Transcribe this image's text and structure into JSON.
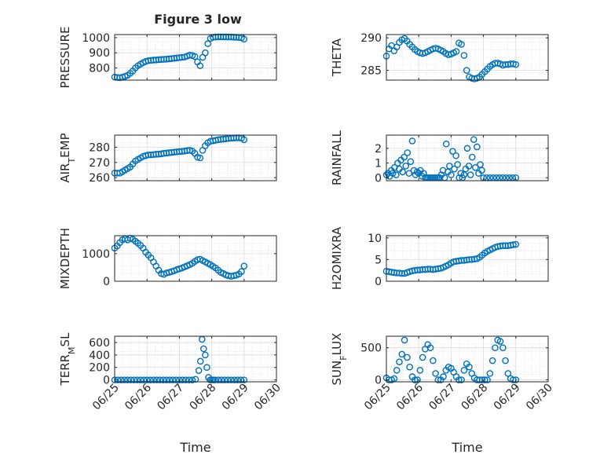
{
  "title": "Figure 3 low",
  "marker_color": "#0072BD",
  "x_tick_labels": [
    "06/25",
    "06/26",
    "06/27",
    "06/28",
    "06/29",
    "06/30"
  ],
  "x_label": "Time",
  "chart_data": [
    {
      "type": "scatter",
      "title": "Figure 3 low",
      "xlabel": "",
      "ylabel": "PRESSURE",
      "xlim": [
        0,
        5
      ],
      "ylim": [
        720,
        1020
      ],
      "yticks": [
        800,
        900,
        1000
      ],
      "grid": true,
      "x": [
        0,
        0.08,
        0.16,
        0.24,
        0.32,
        0.4,
        0.48,
        0.56,
        0.64,
        0.72,
        0.8,
        0.88,
        0.96,
        1.04,
        1.12,
        1.2,
        1.28,
        1.36,
        1.44,
        1.52,
        1.6,
        1.68,
        1.76,
        1.84,
        1.92,
        2.0,
        2.08,
        2.16,
        2.24,
        2.32,
        2.4,
        2.48,
        2.56,
        2.64,
        2.72,
        2.8,
        2.88,
        2.96,
        3.04,
        3.12,
        3.2,
        3.28,
        3.36,
        3.44,
        3.52,
        3.6,
        3.68,
        3.76,
        3.84,
        3.92,
        4.0
      ],
      "y": [
        740,
        738,
        736,
        740,
        745,
        752,
        765,
        780,
        800,
        815,
        825,
        835,
        843,
        848,
        850,
        852,
        853,
        855,
        856,
        857,
        858,
        860,
        862,
        864,
        866,
        868,
        870,
        872,
        878,
        885,
        882,
        875,
        840,
        815,
        870,
        900,
        960,
        995,
        1002,
        1004,
        1005,
        1005,
        1005,
        1005,
        1004,
        1004,
        1003,
        1002,
        1001,
        999,
        990
      ]
    },
    {
      "type": "scatter",
      "title": "",
      "xlabel": "",
      "ylabel": "THETA",
      "xlim": [
        0,
        5
      ],
      "ylim": [
        283.5,
        290.5
      ],
      "yticks": [
        285,
        290
      ],
      "grid": true,
      "x": [
        0,
        0.08,
        0.16,
        0.24,
        0.32,
        0.4,
        0.48,
        0.56,
        0.64,
        0.72,
        0.8,
        0.88,
        0.96,
        1.04,
        1.12,
        1.2,
        1.28,
        1.36,
        1.44,
        1.52,
        1.6,
        1.68,
        1.76,
        1.84,
        1.92,
        2.0,
        2.08,
        2.16,
        2.24,
        2.32,
        2.4,
        2.48,
        2.56,
        2.64,
        2.72,
        2.8,
        2.88,
        2.96,
        3.04,
        3.12,
        3.2,
        3.28,
        3.36,
        3.44,
        3.52,
        3.6,
        3.68,
        3.76,
        3.84,
        3.92,
        4.0
      ],
      "y": [
        287.2,
        288.3,
        288.8,
        288.0,
        288.6,
        289.3,
        289.7,
        289.9,
        289.5,
        289.0,
        288.6,
        288.2,
        287.9,
        287.7,
        287.6,
        287.7,
        287.9,
        288.1,
        288.3,
        288.4,
        288.3,
        288.1,
        287.9,
        287.6,
        287.4,
        287.5,
        287.7,
        287.9,
        289.2,
        289.0,
        287.3,
        285.0,
        284.0,
        283.8,
        283.7,
        283.8,
        284.0,
        284.4,
        284.8,
        285.2,
        285.6,
        285.9,
        286.1,
        286.1,
        286.0,
        285.8,
        285.9,
        285.9,
        286.0,
        286.0,
        285.9
      ]
    },
    {
      "type": "scatter",
      "title": "",
      "xlabel": "",
      "ylabel": "AIR_TEMP",
      "xlim": [
        0,
        5
      ],
      "ylim": [
        258,
        288
      ],
      "yticks": [
        260,
        270,
        280
      ],
      "grid": true,
      "x": [
        0,
        0.08,
        0.16,
        0.24,
        0.32,
        0.4,
        0.48,
        0.56,
        0.64,
        0.72,
        0.8,
        0.88,
        0.96,
        1.04,
        1.12,
        1.2,
        1.28,
        1.36,
        1.44,
        1.52,
        1.6,
        1.68,
        1.76,
        1.84,
        1.92,
        2.0,
        2.08,
        2.16,
        2.24,
        2.32,
        2.4,
        2.48,
        2.56,
        2.64,
        2.72,
        2.8,
        2.88,
        2.96,
        3.04,
        3.12,
        3.2,
        3.28,
        3.36,
        3.44,
        3.52,
        3.6,
        3.68,
        3.76,
        3.84,
        3.92,
        4.0
      ],
      "y": [
        263,
        263,
        263,
        264,
        265,
        266,
        267,
        269,
        271,
        272,
        273,
        274,
        274.5,
        275,
        275,
        275.2,
        275.4,
        275.5,
        275.7,
        276,
        276.2,
        276.4,
        276.6,
        276.8,
        277,
        277.2,
        277.3,
        277.5,
        277.8,
        278,
        277.5,
        276,
        273.5,
        273,
        278,
        281,
        283,
        284,
        284.3,
        284.6,
        285,
        285.2,
        285.4,
        285.6,
        285.8,
        286,
        286.1,
        286.2,
        286.2,
        286,
        285
      ]
    },
    {
      "type": "scatter",
      "title": "",
      "xlabel": "",
      "ylabel": "RAINFALL",
      "xlim": [
        0,
        5
      ],
      "ylim": [
        -0.2,
        2.9
      ],
      "yticks": [
        0,
        1,
        2
      ],
      "grid": true,
      "x": [
        0,
        0.05,
        0.1,
        0.15,
        0.2,
        0.25,
        0.3,
        0.35,
        0.4,
        0.45,
        0.5,
        0.55,
        0.6,
        0.65,
        0.7,
        0.75,
        0.8,
        0.85,
        0.9,
        0.95,
        1.0,
        1.05,
        1.1,
        1.15,
        1.2,
        1.25,
        1.3,
        1.35,
        1.4,
        1.45,
        1.5,
        1.55,
        1.6,
        1.65,
        1.7,
        1.75,
        1.8,
        1.85,
        1.9,
        1.95,
        2.0,
        2.05,
        2.1,
        2.15,
        2.2,
        2.25,
        2.3,
        2.35,
        2.4,
        2.45,
        2.5,
        2.55,
        2.6,
        2.65,
        2.7,
        2.75,
        2.8,
        2.85,
        2.9,
        2.95,
        3.0,
        3.1,
        3.2,
        3.3,
        3.4,
        3.5,
        3.6,
        3.7,
        3.8,
        3.9,
        4.0
      ],
      "y": [
        0.2,
        0.3,
        0.1,
        0.5,
        0.3,
        0.7,
        0.2,
        1.0,
        0.6,
        1.2,
        0.4,
        1.4,
        0.8,
        1.7,
        0.3,
        1.1,
        2.5,
        0.5,
        0.2,
        0.4,
        0.3,
        0.5,
        0.1,
        0.3,
        0.0,
        0.0,
        0.0,
        0.0,
        0.0,
        0.0,
        0.0,
        0.0,
        0.0,
        0.0,
        0.2,
        0.5,
        0.0,
        2.3,
        0.4,
        0.8,
        0.2,
        1.8,
        0.6,
        1.5,
        0.9,
        0.0,
        0.3,
        0.0,
        0.2,
        0.6,
        2.0,
        0.8,
        0.2,
        1.4,
        2.6,
        0.7,
        2.1,
        0.3,
        0.9,
        0.5,
        0.0,
        0.0,
        0.0,
        0.0,
        0.0,
        0.0,
        0.0,
        0.0,
        0.0,
        0.0,
        0.0
      ]
    },
    {
      "type": "scatter",
      "title": "",
      "xlabel": "",
      "ylabel": "MIXDEPTH",
      "xlim": [
        0,
        5
      ],
      "ylim": [
        0,
        1650
      ],
      "yticks": [
        0,
        1000
      ],
      "grid": true,
      "x": [
        0,
        0.08,
        0.16,
        0.24,
        0.32,
        0.4,
        0.48,
        0.56,
        0.64,
        0.72,
        0.8,
        0.88,
        0.96,
        1.04,
        1.12,
        1.2,
        1.28,
        1.36,
        1.44,
        1.52,
        1.6,
        1.68,
        1.76,
        1.84,
        1.92,
        2.0,
        2.08,
        2.16,
        2.24,
        2.32,
        2.4,
        2.48,
        2.56,
        2.64,
        2.72,
        2.8,
        2.88,
        2.96,
        3.04,
        3.12,
        3.2,
        3.28,
        3.36,
        3.44,
        3.52,
        3.6,
        3.68,
        3.76,
        3.84,
        3.92,
        4.0
      ],
      "y": [
        1200,
        1280,
        1400,
        1500,
        1540,
        1500,
        1560,
        1520,
        1450,
        1380,
        1300,
        1200,
        1050,
        950,
        850,
        700,
        550,
        400,
        280,
        250,
        300,
        320,
        350,
        380,
        420,
        450,
        480,
        520,
        560,
        600,
        650,
        720,
        780,
        800,
        750,
        700,
        650,
        600,
        540,
        480,
        400,
        320,
        280,
        230,
        200,
        180,
        200,
        220,
        260,
        350,
        550
      ]
    },
    {
      "type": "scatter",
      "title": "",
      "xlabel": "",
      "ylabel": "H2OMIXRA",
      "xlim": [
        0,
        5
      ],
      "ylim": [
        0,
        10.5
      ],
      "yticks": [
        0,
        5,
        10
      ],
      "grid": true,
      "x": [
        0,
        0.08,
        0.16,
        0.24,
        0.32,
        0.4,
        0.48,
        0.56,
        0.64,
        0.72,
        0.8,
        0.88,
        0.96,
        1.04,
        1.12,
        1.2,
        1.28,
        1.36,
        1.44,
        1.52,
        1.6,
        1.68,
        1.76,
        1.84,
        1.92,
        2.0,
        2.08,
        2.16,
        2.24,
        2.32,
        2.4,
        2.48,
        2.56,
        2.64,
        2.72,
        2.8,
        2.88,
        2.96,
        3.04,
        3.12,
        3.2,
        3.28,
        3.36,
        3.44,
        3.52,
        3.6,
        3.68,
        3.76,
        3.84,
        3.92,
        4.0
      ],
      "y": [
        2.3,
        2.2,
        2.1,
        2.0,
        1.9,
        1.9,
        1.8,
        1.8,
        2.0,
        2.2,
        2.4,
        2.5,
        2.6,
        2.6,
        2.7,
        2.7,
        2.8,
        2.8,
        2.7,
        2.8,
        2.9,
        3.0,
        3.2,
        3.5,
        3.8,
        4.2,
        4.5,
        4.6,
        4.7,
        4.8,
        4.8,
        4.9,
        5.0,
        5.0,
        5.1,
        5.2,
        5.5,
        6.0,
        6.5,
        6.9,
        7.2,
        7.5,
        7.8,
        8.0,
        8.1,
        8.2,
        8.2,
        8.2,
        8.3,
        8.4,
        8.5
      ]
    },
    {
      "type": "scatter",
      "title": "",
      "xlabel": "Time",
      "ylabel": "TERR_MSL",
      "xlim": [
        0,
        5
      ],
      "ylim": [
        -30,
        700
      ],
      "yticks": [
        0,
        200,
        400,
        600
      ],
      "grid": true,
      "x": [
        0,
        0.1,
        0.2,
        0.3,
        0.4,
        0.5,
        0.6,
        0.7,
        0.8,
        0.9,
        1.0,
        1.1,
        1.2,
        1.3,
        1.4,
        1.5,
        1.6,
        1.7,
        1.8,
        1.9,
        2.0,
        2.1,
        2.2,
        2.3,
        2.4,
        2.5,
        2.6,
        2.65,
        2.7,
        2.75,
        2.8,
        2.85,
        2.9,
        2.95,
        3.0,
        3.05,
        3.1,
        3.2,
        3.3,
        3.4,
        3.5,
        3.6,
        3.7,
        3.8,
        3.9,
        4.0
      ],
      "y": [
        0,
        0,
        0,
        0,
        0,
        0,
        0,
        0,
        0,
        0,
        0,
        0,
        0,
        0,
        0,
        0,
        0,
        0,
        0,
        0,
        0,
        0,
        0,
        0,
        0,
        10,
        150,
        300,
        650,
        500,
        400,
        200,
        40,
        0,
        0,
        0,
        0,
        0,
        0,
        0,
        0,
        0,
        0,
        0,
        0,
        0
      ]
    },
    {
      "type": "scatter",
      "title": "",
      "xlabel": "Time",
      "ylabel": "SUN_FLUX",
      "xlim": [
        0,
        5
      ],
      "ylim": [
        -30,
        680
      ],
      "yticks": [
        0,
        500
      ],
      "grid": true,
      "x": [
        0,
        0.08,
        0.16,
        0.24,
        0.32,
        0.4,
        0.48,
        0.56,
        0.64,
        0.72,
        0.8,
        0.88,
        0.96,
        1.04,
        1.12,
        1.2,
        1.28,
        1.36,
        1.44,
        1.52,
        1.6,
        1.68,
        1.76,
        1.84,
        1.92,
        2.0,
        2.08,
        2.16,
        2.24,
        2.32,
        2.4,
        2.48,
        2.56,
        2.64,
        2.72,
        2.8,
        2.88,
        2.96,
        3.04,
        3.12,
        3.2,
        3.28,
        3.36,
        3.44,
        3.52,
        3.6,
        3.68,
        3.76,
        3.84,
        3.92,
        4.0
      ],
      "y": [
        30,
        0,
        0,
        20,
        150,
        280,
        400,
        620,
        350,
        200,
        50,
        0,
        0,
        150,
        350,
        480,
        550,
        500,
        300,
        100,
        0,
        0,
        50,
        150,
        200,
        180,
        120,
        50,
        0,
        0,
        150,
        250,
        200,
        100,
        30,
        0,
        0,
        0,
        0,
        0,
        100,
        300,
        500,
        620,
        600,
        500,
        300,
        100,
        20,
        0,
        0
      ]
    }
  ]
}
